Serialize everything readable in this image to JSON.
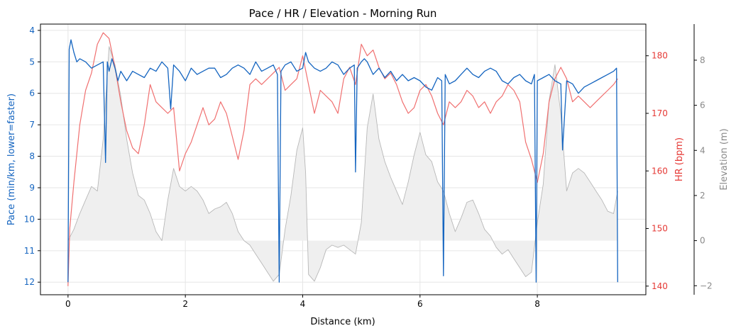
{
  "chart_data": {
    "type": "line",
    "title": "Pace / HR / Elevation - Morning Run",
    "xlabel": "Distance (km)",
    "xlim": [
      -0.47,
      9.85
    ],
    "x_ticks": [
      0,
      2,
      4,
      6,
      8
    ],
    "grid": true,
    "axes": {
      "pace": {
        "label": "Pace (min/km, lower=faster)",
        "ylim": [
          12.4,
          3.8
        ],
        "inverted": true,
        "ticks": [
          4,
          5,
          6,
          7,
          8,
          9,
          10,
          11,
          12
        ],
        "color": "#1565c0"
      },
      "hr": {
        "label": "HR (bpm)",
        "ylim": [
          138.5,
          185.5
        ],
        "ticks": [
          140,
          150,
          160,
          170,
          180
        ],
        "color": "#e53935"
      },
      "elevation": {
        "label": "Elevation (m)",
        "ylim": [
          -2.4,
          9.6
        ],
        "ticks": [
          -2,
          0,
          2,
          4,
          6,
          8
        ],
        "color": "#8a8a8a"
      }
    },
    "series": [
      {
        "name": "Pace",
        "axis": "pace",
        "color": "#1565c0",
        "x": [
          0,
          0.02,
          0.05,
          0.1,
          0.15,
          0.2,
          0.3,
          0.4,
          0.5,
          0.6,
          0.64,
          0.67,
          0.7,
          0.75,
          0.8,
          0.85,
          0.9,
          1.0,
          1.1,
          1.2,
          1.3,
          1.4,
          1.5,
          1.6,
          1.7,
          1.75,
          1.8,
          1.9,
          2.0,
          2.1,
          2.2,
          2.3,
          2.4,
          2.5,
          2.6,
          2.7,
          2.8,
          2.9,
          3.0,
          3.1,
          3.2,
          3.3,
          3.4,
          3.5,
          3.57,
          3.6,
          3.63,
          3.7,
          3.8,
          3.9,
          4.0,
          4.05,
          4.1,
          4.2,
          4.3,
          4.4,
          4.5,
          4.6,
          4.7,
          4.8,
          4.88,
          4.9,
          4.93,
          5.0,
          5.05,
          5.1,
          5.2,
          5.3,
          5.4,
          5.5,
          5.6,
          5.7,
          5.8,
          5.9,
          6.0,
          6.1,
          6.2,
          6.3,
          6.37,
          6.4,
          6.43,
          6.5,
          6.6,
          6.7,
          6.8,
          6.9,
          7.0,
          7.1,
          7.2,
          7.3,
          7.4,
          7.5,
          7.6,
          7.7,
          7.8,
          7.9,
          7.95,
          7.98,
          8.0,
          8.1,
          8.2,
          8.3,
          8.4,
          8.43,
          8.5,
          8.6,
          8.7,
          8.8,
          8.9,
          9.0,
          9.1,
          9.2,
          9.3,
          9.35,
          9.37
        ],
        "values": [
          12.0,
          4.6,
          4.3,
          4.7,
          5.0,
          4.9,
          5.0,
          5.2,
          5.1,
          5.0,
          8.2,
          5.0,
          5.3,
          4.9,
          5.2,
          5.6,
          5.3,
          5.6,
          5.3,
          5.4,
          5.5,
          5.2,
          5.3,
          5.0,
          5.2,
          6.5,
          5.1,
          5.3,
          5.6,
          5.2,
          5.4,
          5.3,
          5.2,
          5.2,
          5.5,
          5.4,
          5.2,
          5.1,
          5.2,
          5.4,
          5.0,
          5.3,
          5.2,
          5.1,
          5.4,
          12.0,
          5.3,
          5.1,
          5.0,
          5.3,
          5.2,
          4.7,
          5.0,
          5.2,
          5.3,
          5.2,
          5.0,
          5.1,
          5.4,
          5.2,
          5.1,
          8.5,
          5.2,
          5.0,
          4.9,
          5.0,
          5.4,
          5.2,
          5.5,
          5.3,
          5.6,
          5.4,
          5.6,
          5.5,
          5.6,
          5.8,
          5.9,
          5.5,
          5.6,
          11.8,
          5.4,
          5.7,
          5.6,
          5.4,
          5.2,
          5.4,
          5.5,
          5.3,
          5.2,
          5.3,
          5.6,
          5.7,
          5.5,
          5.4,
          5.6,
          5.7,
          5.4,
          12.0,
          5.6,
          5.5,
          5.4,
          5.6,
          5.7,
          7.8,
          5.6,
          5.7,
          6.0,
          5.8,
          5.7,
          5.6,
          5.5,
          5.4,
          5.3,
          5.2,
          12.0
        ]
      },
      {
        "name": "HR",
        "axis": "hr",
        "color": "#f07070",
        "x": [
          0,
          0.03,
          0.1,
          0.2,
          0.3,
          0.4,
          0.5,
          0.6,
          0.7,
          0.8,
          0.9,
          1.0,
          1.1,
          1.2,
          1.3,
          1.4,
          1.5,
          1.6,
          1.7,
          1.8,
          1.9,
          2.0,
          2.1,
          2.2,
          2.3,
          2.4,
          2.5,
          2.6,
          2.7,
          2.8,
          2.9,
          3.0,
          3.1,
          3.2,
          3.3,
          3.4,
          3.5,
          3.6,
          3.7,
          3.8,
          3.9,
          4.0,
          4.1,
          4.2,
          4.3,
          4.4,
          4.5,
          4.6,
          4.7,
          4.8,
          4.9,
          5.0,
          5.1,
          5.2,
          5.3,
          5.4,
          5.5,
          5.6,
          5.7,
          5.8,
          5.9,
          6.0,
          6.1,
          6.2,
          6.3,
          6.4,
          6.5,
          6.6,
          6.7,
          6.8,
          6.9,
          7.0,
          7.1,
          7.2,
          7.3,
          7.4,
          7.5,
          7.6,
          7.7,
          7.8,
          7.9,
          8.0,
          8.1,
          8.2,
          8.3,
          8.4,
          8.5,
          8.6,
          8.7,
          8.8,
          8.9,
          9.0,
          9.1,
          9.2,
          9.3,
          9.37
        ],
        "values": [
          140,
          150,
          158,
          168,
          174,
          177,
          182,
          184,
          183,
          178,
          172,
          167,
          164,
          163,
          168,
          175,
          172,
          171,
          170,
          171,
          160,
          163,
          165,
          168,
          171,
          168,
          169,
          172,
          170,
          166,
          162,
          167,
          175,
          176,
          175,
          176,
          177,
          178,
          174,
          175,
          176,
          180,
          175,
          170,
          174,
          173,
          172,
          170,
          176,
          178,
          175,
          182,
          180,
          181,
          178,
          176,
          177,
          175,
          172,
          170,
          171,
          174,
          175,
          173,
          170,
          168,
          172,
          171,
          172,
          174,
          173,
          171,
          172,
          170,
          172,
          173,
          175,
          174,
          172,
          165,
          162,
          158,
          163,
          172,
          176,
          178,
          176,
          172,
          173,
          172,
          171,
          172,
          173,
          174,
          175,
          176
        ]
      },
      {
        "name": "Elevation",
        "axis": "elevation",
        "color": "#b8b8b8",
        "fill": "#efefef",
        "x": [
          0,
          0.1,
          0.2,
          0.3,
          0.4,
          0.5,
          0.6,
          0.7,
          0.8,
          0.9,
          1.0,
          1.1,
          1.2,
          1.3,
          1.4,
          1.5,
          1.6,
          1.7,
          1.8,
          1.9,
          2.0,
          2.1,
          2.2,
          2.3,
          2.4,
          2.5,
          2.6,
          2.7,
          2.8,
          2.9,
          3.0,
          3.1,
          3.2,
          3.3,
          3.4,
          3.5,
          3.6,
          3.7,
          3.8,
          3.9,
          4.0,
          4.05,
          4.1,
          4.2,
          4.3,
          4.4,
          4.5,
          4.6,
          4.7,
          4.8,
          4.9,
          5.0,
          5.1,
          5.2,
          5.3,
          5.4,
          5.5,
          5.6,
          5.7,
          5.8,
          5.9,
          6.0,
          6.1,
          6.2,
          6.3,
          6.4,
          6.5,
          6.6,
          6.7,
          6.8,
          6.9,
          7.0,
          7.1,
          7.2,
          7.3,
          7.4,
          7.5,
          7.6,
          7.7,
          7.8,
          7.9,
          8.0,
          8.1,
          8.2,
          8.3,
          8.4,
          8.5,
          8.6,
          8.7,
          8.8,
          8.9,
          9.0,
          9.1,
          9.2,
          9.3,
          9.37
        ],
        "values": [
          0,
          0.5,
          1.2,
          1.8,
          2.4,
          2.2,
          4.5,
          8.6,
          7.8,
          6.4,
          4.5,
          3.0,
          2.0,
          1.8,
          1.2,
          0.4,
          0,
          1.8,
          3.2,
          2.4,
          2.2,
          2.4,
          2.2,
          1.8,
          1.2,
          1.4,
          1.5,
          1.7,
          1.2,
          0.4,
          0,
          -0.2,
          -0.6,
          -1.0,
          -1.4,
          -1.8,
          -1.5,
          0.5,
          2.0,
          4.0,
          5.0,
          3.0,
          -1.5,
          -1.8,
          -1.2,
          -0.4,
          -0.2,
          -0.3,
          -0.2,
          -0.4,
          -0.6,
          0.8,
          5.0,
          6.5,
          4.5,
          3.5,
          2.8,
          2.2,
          1.6,
          2.6,
          3.8,
          4.8,
          3.8,
          3.5,
          2.6,
          2.2,
          1.2,
          0.4,
          1.0,
          1.7,
          1.8,
          1.2,
          0.5,
          0.2,
          -0.3,
          -0.6,
          -0.4,
          -0.8,
          -1.2,
          -1.6,
          -1.4,
          0.8,
          2.5,
          6.2,
          7.8,
          5.6,
          2.2,
          3.0,
          3.2,
          3.0,
          2.6,
          2.2,
          1.8,
          1.3,
          1.2,
          2.2
        ]
      }
    ]
  }
}
